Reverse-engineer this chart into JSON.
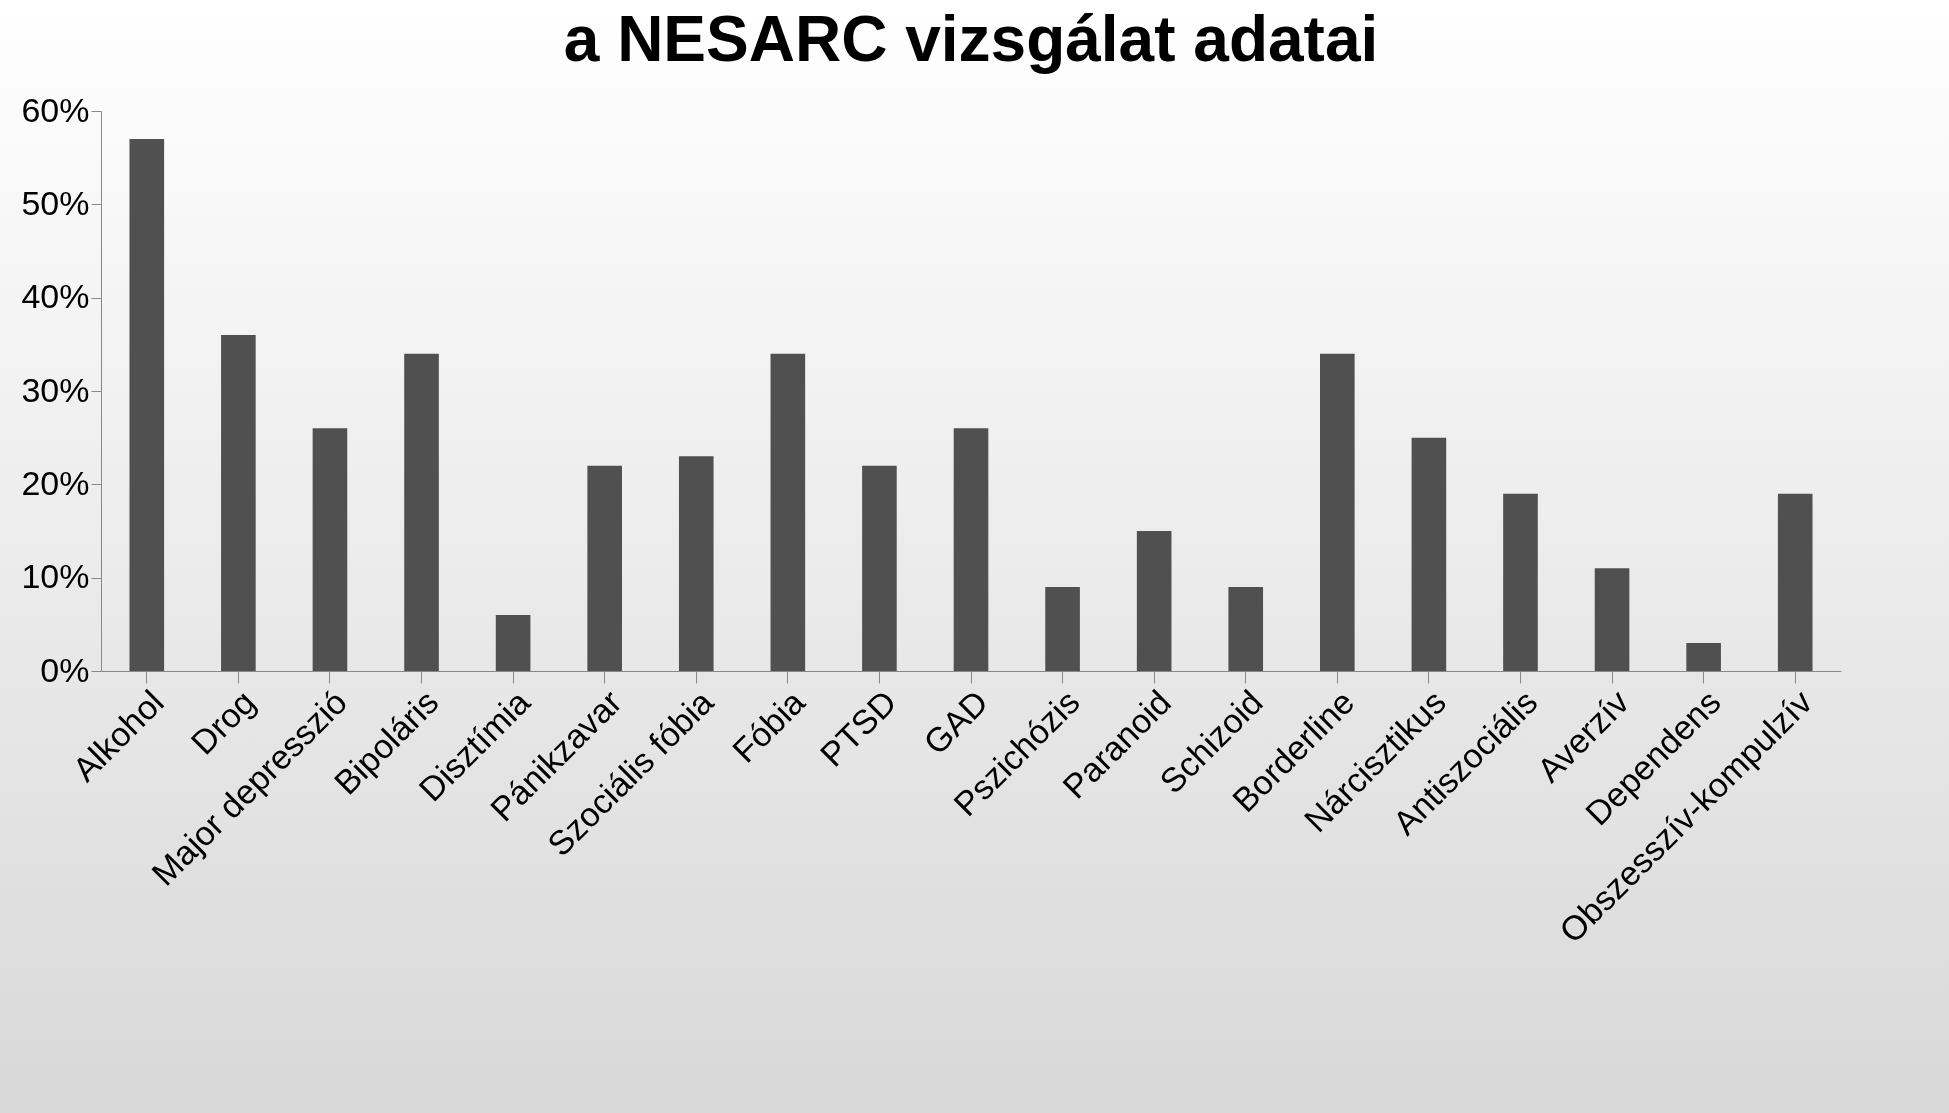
{
  "chart_data": {
    "type": "bar",
    "title": "a NESARC vizsgálat adatai",
    "categories": [
      "Alkohol",
      "Drog",
      "Major depresszió",
      "Bipoláris",
      "Disztímia",
      "Pánikzavar",
      "Szociális fóbia",
      "Fóbia",
      "PTSD",
      "GAD",
      "Pszichózis",
      "Paranoid",
      "Schizoid",
      "Borderline",
      "Nárcisztikus",
      "Antiszociális",
      "Averzív",
      "Dependens",
      "Obszesszív-kompulzív"
    ],
    "values": [
      57,
      36,
      26,
      34,
      6,
      22,
      23,
      34,
      22,
      26,
      9,
      15,
      9,
      34,
      25,
      19,
      11,
      3,
      19
    ],
    "color": "#505050",
    "ylim": [
      0,
      60
    ],
    "yticks": [
      {
        "value": 0,
        "label": "0%"
      },
      {
        "value": 10,
        "label": "10%"
      },
      {
        "value": 20,
        "label": "20%"
      },
      {
        "value": 30,
        "label": "30%"
      },
      {
        "value": 40,
        "label": "40%"
      },
      {
        "value": 50,
        "label": "50%"
      },
      {
        "value": 60,
        "label": "60%"
      }
    ],
    "grid": false
  }
}
